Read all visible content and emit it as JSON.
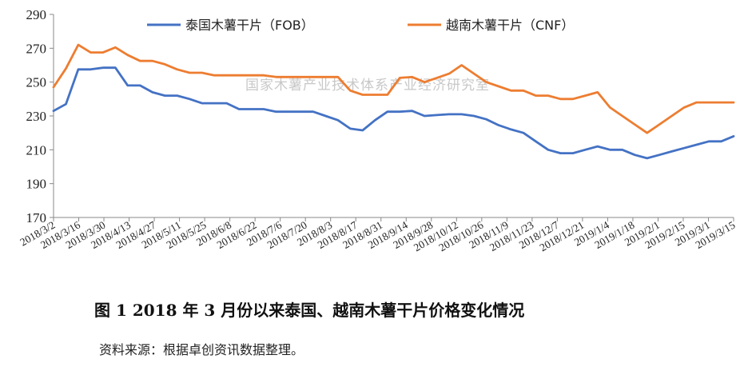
{
  "chart_data": {
    "type": "line",
    "title": "",
    "ylim": [
      170,
      290
    ],
    "yticks": [
      170,
      190,
      210,
      230,
      250,
      270,
      290
    ],
    "grid": false,
    "legend_position": "top",
    "x_tick_labels": [
      "2018/3/2",
      "2018/3/16",
      "2018/3/30",
      "2018/4/13",
      "2018/4/27",
      "2018/5/11",
      "2018/5/25",
      "2018/6/8",
      "2018/6/22",
      "2018/7/6",
      "2018/7/20",
      "2018/8/3",
      "2018/8/17",
      "2018/8/31",
      "2018/9/14",
      "2018/9/28",
      "2018/10/12",
      "2018/10/26",
      "2018/11/9",
      "2018/11/23",
      "2018/12/7",
      "2018/12/21",
      "2019/1/4",
      "2019/1/18",
      "2019/2/1",
      "2019/2/15",
      "2019/3/1",
      "2019/3/15"
    ],
    "series": [
      {
        "name": "泰国木薯干片（FOB）",
        "color": "#4472C4",
        "values": [
          233,
          237,
          257.5,
          257.5,
          258.5,
          258.5,
          248,
          248,
          244,
          242,
          242,
          240,
          237.5,
          237.5,
          237.5,
          234,
          234,
          234,
          232.5,
          232.5,
          232.5,
          232.5,
          230,
          227.5,
          222.5,
          221.5,
          227.5,
          232.5,
          232.5,
          233,
          230,
          230.5,
          231,
          231,
          230,
          228,
          224.5,
          222,
          220,
          215,
          210,
          208,
          208,
          210,
          212,
          210,
          210,
          207,
          205,
          207,
          209,
          211,
          213,
          215,
          215,
          218
        ]
      },
      {
        "name": "越南木薯干片（CNF）",
        "color": "#ED7D31",
        "values": [
          247,
          258,
          272,
          267.5,
          267.5,
          270.5,
          266,
          262.5,
          262.5,
          260.5,
          257.5,
          255.5,
          255.5,
          254,
          254,
          254,
          254,
          254,
          253,
          253,
          253,
          253,
          253,
          253,
          245,
          242.5,
          242.5,
          242.5,
          252.5,
          253,
          250,
          252.5,
          255,
          260,
          255,
          250,
          247.5,
          245,
          245,
          242,
          242,
          240,
          240,
          242,
          244,
          235,
          230,
          225,
          220,
          225,
          230,
          235,
          238,
          238,
          238,
          238
        ]
      }
    ]
  },
  "watermark": "国家木薯产业技术体系产业经济研究室",
  "caption": "图 1    2018 年 3 月份以来泰国、越南木薯干片价格变化情况",
  "source": "资料来源：根据卓创资讯数据整理。"
}
